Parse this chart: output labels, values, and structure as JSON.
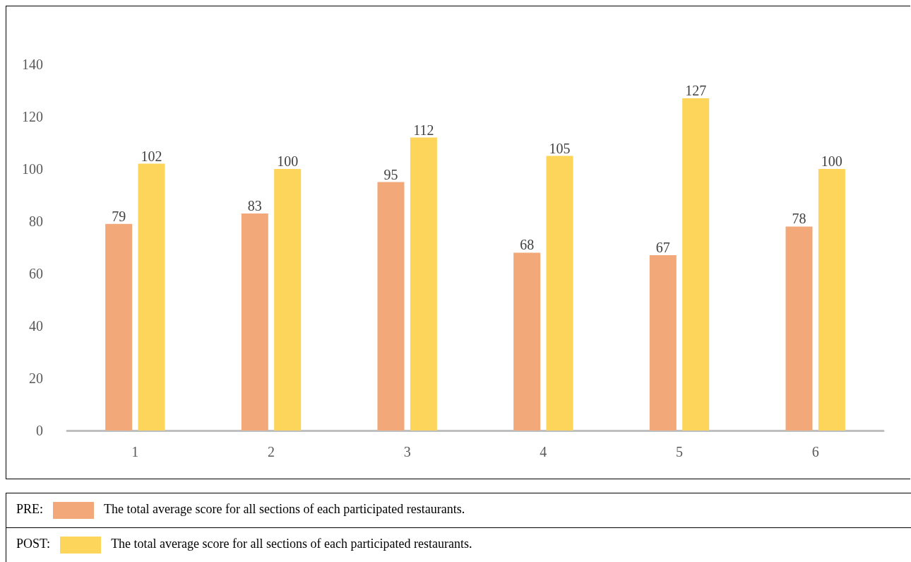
{
  "chart_data": {
    "type": "bar",
    "categories": [
      "1",
      "2",
      "3",
      "4",
      "5",
      "6"
    ],
    "series": [
      {
        "name": "PRE:",
        "color": "#f2a878",
        "values": [
          79,
          83,
          95,
          68,
          67,
          78
        ]
      },
      {
        "name": "POST:",
        "color": "#fdd55a",
        "values": [
          102,
          100,
          112,
          105,
          127,
          100
        ]
      }
    ],
    "annotations": [
      "The total average score for all sections of each participated restaurants.",
      "The total average score for all sections of each participated restaurants."
    ],
    "ylim": [
      0,
      140
    ],
    "yticks": [
      0,
      20,
      40,
      60,
      80,
      100,
      120,
      140
    ],
    "grid": false,
    "data_labels": true,
    "legend": "bottom"
  }
}
